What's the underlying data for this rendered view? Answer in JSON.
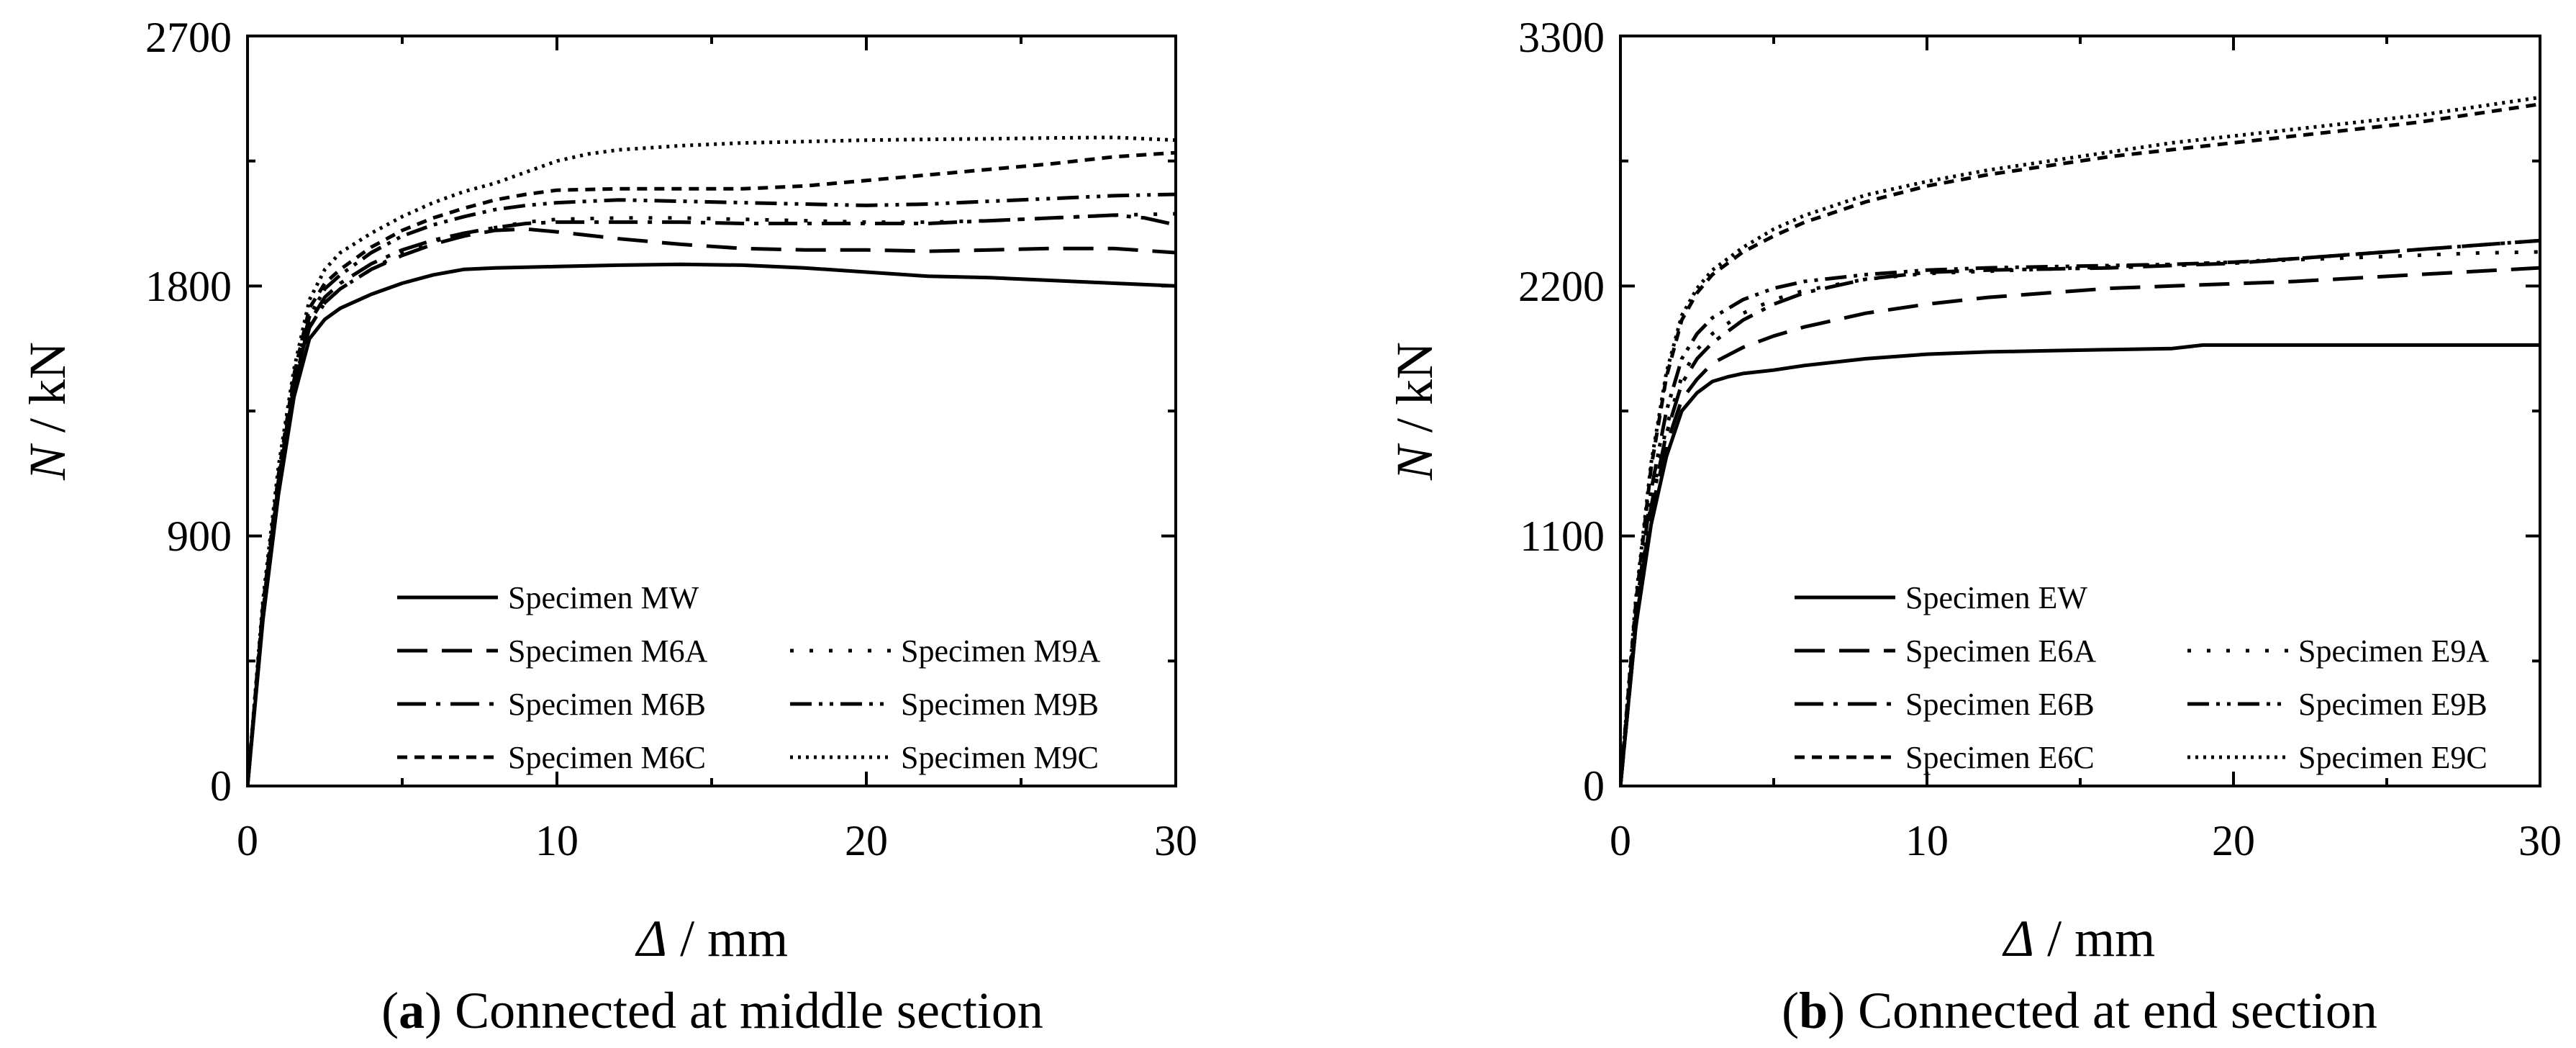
{
  "chart_data": [
    {
      "type": "line",
      "panel_label": "a",
      "caption": "Connected at middle section",
      "xlabel_symbol": "Δ",
      "xlabel_unit": " / mm",
      "ylabel_symbol": "N",
      "ylabel_unit": " / kN",
      "xlim": [
        0,
        30
      ],
      "ylim": [
        0,
        2700
      ],
      "xticks": [
        0,
        10,
        20,
        30
      ],
      "yticks": [
        0,
        900,
        1800,
        2700
      ],
      "grid": false,
      "legend_position": "bottom-right",
      "series": [
        {
          "name": "Specimen MW",
          "dash": "solid",
          "x": [
            0,
            0.5,
            1,
            1.5,
            2,
            2.5,
            3,
            4,
            5,
            6,
            7,
            8,
            10,
            12,
            14,
            16,
            18,
            20,
            22,
            24,
            26,
            28,
            30
          ],
          "y": [
            0,
            600,
            1050,
            1400,
            1610,
            1680,
            1720,
            1770,
            1810,
            1840,
            1860,
            1865,
            1870,
            1875,
            1878,
            1875,
            1865,
            1850,
            1835,
            1830,
            1820,
            1810,
            1800
          ]
        },
        {
          "name": "Specimen M6A",
          "dash": "longdash",
          "x": [
            0,
            0.5,
            1,
            1.5,
            2,
            2.5,
            3,
            4,
            5,
            6,
            7,
            8,
            9,
            10,
            12,
            14,
            16,
            18,
            20,
            22,
            24,
            26,
            28,
            30
          ],
          "y": [
            0,
            620,
            1080,
            1430,
            1650,
            1740,
            1790,
            1860,
            1910,
            1950,
            1980,
            2000,
            2005,
            1995,
            1970,
            1950,
            1935,
            1930,
            1930,
            1925,
            1930,
            1935,
            1935,
            1920
          ]
        },
        {
          "name": "Specimen M6B",
          "dash": "dashdot",
          "x": [
            0,
            0.5,
            1,
            1.5,
            2,
            2.5,
            3,
            4,
            5,
            6,
            7,
            8,
            9,
            10,
            12,
            14,
            16,
            18,
            20,
            22,
            24,
            26,
            28,
            29,
            30
          ],
          "y": [
            0,
            630,
            1090,
            1440,
            1670,
            1760,
            1810,
            1880,
            1930,
            1965,
            1990,
            2010,
            2025,
            2030,
            2030,
            2030,
            2025,
            2025,
            2025,
            2025,
            2035,
            2045,
            2055,
            2045,
            2020
          ]
        },
        {
          "name": "Specimen M6C",
          "dash": "shortdash",
          "x": [
            0,
            0.5,
            1,
            1.5,
            2,
            2.5,
            3,
            4,
            5,
            6,
            7,
            8,
            9,
            10,
            12,
            14,
            16,
            18,
            20,
            22,
            24,
            26,
            28,
            30
          ],
          "y": [
            0,
            650,
            1120,
            1480,
            1720,
            1810,
            1860,
            1940,
            2000,
            2045,
            2080,
            2110,
            2130,
            2145,
            2150,
            2150,
            2150,
            2160,
            2180,
            2200,
            2220,
            2240,
            2265,
            2280
          ]
        },
        {
          "name": "Specimen M9A",
          "dash": "dot",
          "x": [
            0,
            0.5,
            1,
            1.5,
            2,
            2.5,
            3,
            4,
            5,
            6,
            7,
            8,
            9,
            10,
            12,
            14,
            16,
            18,
            20,
            22,
            24,
            26,
            28,
            30
          ],
          "y": [
            0,
            620,
            1070,
            1430,
            1650,
            1740,
            1790,
            1860,
            1920,
            1960,
            1990,
            2010,
            2030,
            2040,
            2045,
            2045,
            2040,
            2035,
            2030,
            2030,
            2035,
            2045,
            2055,
            2060
          ]
        },
        {
          "name": "Specimen M9B",
          "dash": "dashdotdot",
          "x": [
            0,
            0.5,
            1,
            1.5,
            2,
            2.5,
            3,
            4,
            5,
            6,
            7,
            8,
            9,
            10,
            12,
            14,
            16,
            18,
            20,
            22,
            24,
            26,
            28,
            30
          ],
          "y": [
            0,
            640,
            1100,
            1460,
            1690,
            1790,
            1840,
            1920,
            1980,
            2020,
            2050,
            2075,
            2090,
            2100,
            2110,
            2105,
            2100,
            2095,
            2090,
            2095,
            2105,
            2115,
            2125,
            2130
          ]
        },
        {
          "name": "Specimen M9C",
          "dash": "densedot",
          "x": [
            0,
            0.5,
            1,
            1.5,
            2,
            2.5,
            3,
            4,
            5,
            6,
            7,
            8,
            9,
            10,
            11,
            12,
            14,
            16,
            18,
            20,
            22,
            24,
            26,
            28,
            29,
            30
          ],
          "y": [
            0,
            670,
            1150,
            1500,
            1750,
            1860,
            1920,
            1990,
            2050,
            2100,
            2140,
            2170,
            2210,
            2250,
            2275,
            2290,
            2305,
            2315,
            2320,
            2325,
            2328,
            2330,
            2333,
            2335,
            2330,
            2325
          ]
        }
      ]
    },
    {
      "type": "line",
      "panel_label": "b",
      "caption": "Connected at end section",
      "xlabel_symbol": "Δ",
      "xlabel_unit": " / mm",
      "ylabel_symbol": "N",
      "ylabel_unit": " / kN",
      "xlim": [
        0,
        30
      ],
      "ylim": [
        0,
        3300
      ],
      "xticks": [
        0,
        10,
        20,
        30
      ],
      "yticks": [
        0,
        1100,
        2200,
        3300
      ],
      "grid": false,
      "legend_position": "bottom-right",
      "series": [
        {
          "name": "Specimen EW",
          "dash": "solid",
          "x": [
            0,
            0.5,
            1,
            1.5,
            2,
            2.5,
            3,
            3.5,
            4,
            5,
            6,
            8,
            10,
            12,
            14,
            16,
            18,
            19,
            20,
            22,
            24,
            26,
            28,
            30
          ],
          "y": [
            0,
            700,
            1150,
            1450,
            1650,
            1730,
            1780,
            1800,
            1815,
            1830,
            1850,
            1880,
            1900,
            1910,
            1915,
            1920,
            1925,
            1940,
            1940,
            1940,
            1940,
            1940,
            1940,
            1940
          ]
        },
        {
          "name": "Specimen E6A",
          "dash": "longdash",
          "x": [
            0,
            0.5,
            1,
            1.5,
            2,
            2.5,
            3,
            4,
            5,
            6,
            8,
            10,
            12,
            14,
            16,
            18,
            20,
            22,
            24,
            26,
            28,
            30
          ],
          "y": [
            0,
            700,
            1200,
            1500,
            1700,
            1790,
            1860,
            1930,
            1980,
            2020,
            2080,
            2120,
            2150,
            2170,
            2190,
            2200,
            2210,
            2220,
            2235,
            2250,
            2265,
            2280
          ]
        },
        {
          "name": "Specimen E6B",
          "dash": "dashdot",
          "x": [
            0,
            0.5,
            1,
            1.5,
            2,
            2.5,
            3,
            4,
            5,
            6,
            8,
            10,
            12,
            14,
            16,
            18,
            20,
            22,
            24,
            26,
            28,
            30
          ],
          "y": [
            0,
            700,
            1230,
            1550,
            1770,
            1880,
            1950,
            2050,
            2120,
            2170,
            2230,
            2260,
            2270,
            2275,
            2280,
            2290,
            2300,
            2320,
            2340,
            2360,
            2380,
            2400
          ]
        },
        {
          "name": "Specimen E6C",
          "dash": "shortdash",
          "x": [
            0,
            0.5,
            1,
            1.5,
            2,
            2.5,
            3,
            4,
            5,
            6,
            8,
            10,
            12,
            14,
            16,
            18,
            20,
            22,
            24,
            26,
            28,
            30
          ],
          "y": [
            0,
            800,
            1400,
            1800,
            2050,
            2170,
            2250,
            2350,
            2420,
            2480,
            2570,
            2640,
            2690,
            2730,
            2770,
            2800,
            2830,
            2860,
            2890,
            2920,
            2960,
            3000
          ]
        },
        {
          "name": "Specimen E9A",
          "dash": "dot",
          "x": [
            0,
            0.5,
            1,
            1.5,
            2,
            2.5,
            3,
            4,
            5,
            6,
            8,
            10,
            12,
            14,
            16,
            18,
            20,
            22,
            24,
            26,
            28,
            30
          ],
          "y": [
            0,
            720,
            1250,
            1580,
            1800,
            1920,
            1990,
            2080,
            2140,
            2180,
            2230,
            2255,
            2265,
            2275,
            2285,
            2295,
            2305,
            2315,
            2325,
            2335,
            2345,
            2350
          ]
        },
        {
          "name": "Specimen E9B",
          "dash": "dashdotdot",
          "x": [
            0,
            0.5,
            1,
            1.5,
            2,
            2.5,
            3,
            4,
            5,
            6,
            8,
            10,
            12,
            14,
            16,
            18,
            20,
            22,
            24,
            26,
            28,
            30
          ],
          "y": [
            0,
            750,
            1300,
            1650,
            1880,
            1990,
            2060,
            2140,
            2190,
            2220,
            2250,
            2270,
            2280,
            2285,
            2290,
            2295,
            2305,
            2320,
            2340,
            2360,
            2380,
            2400
          ]
        },
        {
          "name": "Specimen E9C",
          "dash": "densedot",
          "x": [
            0,
            0.5,
            1,
            1.5,
            2,
            2.5,
            3,
            4,
            5,
            6,
            8,
            10,
            12,
            14,
            16,
            18,
            20,
            22,
            24,
            26,
            28,
            30
          ],
          "y": [
            0,
            820,
            1420,
            1820,
            2070,
            2190,
            2270,
            2370,
            2450,
            2510,
            2600,
            2660,
            2710,
            2750,
            2790,
            2830,
            2860,
            2890,
            2920,
            2950,
            2990,
            3030
          ]
        }
      ]
    }
  ]
}
